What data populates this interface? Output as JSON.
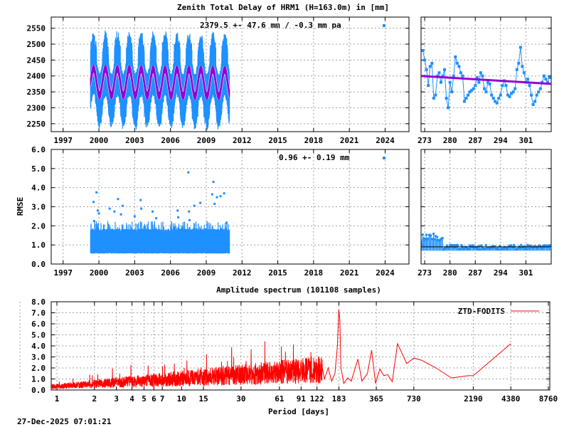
{
  "title": "Zenith Total Delay of HRM1 (H=163.0m) in [mm]",
  "timestamp": "27-Dec-2025 07:01:21",
  "colors": {
    "data": "#1e90ff",
    "model": "#9400d3",
    "spectrum": "#ff0000",
    "grid": "#a0a0a0",
    "axis": "#000000"
  },
  "chart_data": [
    {
      "id": "ztd-long",
      "type": "scatter",
      "ylabel": "",
      "annotation": "2379.5 +-  47.6 mm / -0.3 mm pa",
      "xlim": [
        1996,
        2026
      ],
      "ylim": [
        2225,
        2585
      ],
      "xticks": [
        "1997",
        "2000",
        "2003",
        "2006",
        "2009",
        "2012",
        "2015",
        "2018",
        "2021",
        "2024"
      ],
      "yticks": [
        "2250",
        "2300",
        "2350",
        "2400",
        "2450",
        "2500",
        "2550"
      ],
      "grid": true,
      "data_range": [
        1999.3,
        2010.95
      ],
      "mean": 2379.5,
      "std": 47.6,
      "trend_mm_per_year": -0.3,
      "model_annual_amplitude": 42,
      "series_names": []
    },
    {
      "id": "ztd-recent",
      "type": "scatter",
      "xlim": [
        272,
        308
      ],
      "ylim": [
        2225,
        2585
      ],
      "xticks": [
        "273",
        "280",
        "287",
        "294",
        "301"
      ],
      "grid": true,
      "days": [
        272.5,
        273,
        273.5,
        274,
        274.5,
        275,
        275.5,
        276,
        276.5,
        277,
        277.5,
        278,
        278.5,
        279,
        279.5,
        280,
        280.5,
        281,
        281.5,
        282,
        282.5,
        283,
        283.5,
        284,
        284.5,
        285,
        285.5,
        286,
        286.5,
        287,
        287.5,
        288,
        288.5,
        289,
        289.5,
        290,
        290.5,
        291,
        291.5,
        292,
        292.5,
        293,
        293.5,
        294,
        294.5,
        295,
        295.5,
        296,
        296.5,
        297,
        297.5,
        298,
        298.5,
        299,
        299.5,
        300,
        300.5,
        301,
        301.5,
        302,
        302.5,
        303,
        303.5,
        304,
        304.5,
        305,
        305.5,
        306,
        306.5,
        307,
        307.5
      ],
      "values": [
        2480,
        2450,
        2420,
        2370,
        2430,
        2440,
        2330,
        2340,
        2400,
        2410,
        2380,
        2400,
        2420,
        2330,
        2300,
        2380,
        2350,
        2400,
        2460,
        2440,
        2430,
        2410,
        2400,
        2320,
        2330,
        2340,
        2350,
        2355,
        2360,
        2370,
        2395,
        2380,
        2410,
        2400,
        2360,
        2350,
        2380,
        2375,
        2340,
        2330,
        2320,
        2315,
        2330,
        2340,
        2370,
        2385,
        2370,
        2340,
        2335,
        2345,
        2350,
        2360,
        2420,
        2440,
        2490,
        2430,
        2410,
        2380,
        2390,
        2370,
        2340,
        2310,
        2320,
        2340,
        2350,
        2360,
        2380,
        2400,
        2390,
        2380,
        2395
      ],
      "trend": [
        2400,
        2375
      ]
    },
    {
      "id": "rmse-long",
      "type": "scatter",
      "ylabel": "RMSE",
      "annotation": "0.96 +-  0.19 mm",
      "xlim": [
        1996,
        2026
      ],
      "ylim": [
        0,
        6
      ],
      "xticks": [
        "1997",
        "2000",
        "2003",
        "2006",
        "2009",
        "2012",
        "2015",
        "2018",
        "2021",
        "2024"
      ],
      "yticks": [
        "0.0",
        "1.0",
        "2.0",
        "3.0",
        "4.0",
        "5.0",
        "6.0"
      ],
      "grid": true,
      "mean": 0.96,
      "std": 0.19,
      "outliers": [
        [
          1999.55,
          3.25
        ],
        [
          1999.6,
          2.25
        ],
        [
          1999.8,
          3.75
        ],
        [
          1999.9,
          2.8
        ],
        [
          2000.0,
          2.65
        ],
        [
          2000.9,
          2.9
        ],
        [
          2001.3,
          2.75
        ],
        [
          2001.6,
          3.4
        ],
        [
          2001.85,
          2.6
        ],
        [
          2002.0,
          3.05
        ],
        [
          2003.0,
          2.5
        ],
        [
          2003.5,
          3.35
        ],
        [
          2003.55,
          2.9
        ],
        [
          2004.5,
          2.75
        ],
        [
          2004.8,
          2.4
        ],
        [
          2006.6,
          2.8
        ],
        [
          2006.65,
          2.45
        ],
        [
          2007.5,
          4.8
        ],
        [
          2007.55,
          2.75
        ],
        [
          2007.6,
          2.3
        ],
        [
          2008.0,
          3.05
        ],
        [
          2008.5,
          3.2
        ],
        [
          2009.5,
          3.65
        ],
        [
          2009.6,
          4.3
        ],
        [
          2009.7,
          3.15
        ],
        [
          2009.9,
          3.5
        ],
        [
          2010.2,
          3.55
        ],
        [
          2010.5,
          3.7
        ],
        [
          2010.7,
          2.15
        ]
      ]
    },
    {
      "id": "rmse-recent",
      "type": "scatter",
      "xlim": [
        272,
        308
      ],
      "ylim": [
        0,
        6
      ],
      "xticks": [
        "273",
        "280",
        "287",
        "294",
        "301"
      ],
      "grid": true
    },
    {
      "id": "spectrum",
      "type": "line",
      "title": "Amplitude spectrum (101108 samples)",
      "xlabel": "Period [days]",
      "xscale": "log",
      "xlim": [
        0.9,
        9000
      ],
      "ylim": [
        0,
        8
      ],
      "xticks": [
        "1",
        "2",
        "3",
        "4",
        "5",
        "6",
        "7",
        "10",
        "15",
        "30",
        "61",
        "91",
        "122",
        "183",
        "365",
        "730",
        "2190",
        "4380",
        "8760"
      ],
      "yticks": [
        "0.0",
        "1.0",
        "2.0",
        "3.0",
        "4.0",
        "5.0",
        "6.0",
        "7.0",
        "8.0"
      ],
      "grid": true,
      "legend": {
        "label": "ZTD-FODITS",
        "placement": "top-right"
      },
      "long_period_points": [
        [
          140,
          1.0
        ],
        [
          150,
          2.0
        ],
        [
          160,
          0.8
        ],
        [
          170,
          1.5
        ],
        [
          178,
          4.0
        ],
        [
          182.6,
          7.3
        ],
        [
          186,
          6.4
        ],
        [
          190,
          2.0
        ],
        [
          200,
          0.6
        ],
        [
          215,
          1.1
        ],
        [
          230,
          0.8
        ],
        [
          260,
          2.8
        ],
        [
          280,
          0.8
        ],
        [
          310,
          1.5
        ],
        [
          335,
          3.6
        ],
        [
          360,
          0.6
        ],
        [
          390,
          1.9
        ],
        [
          420,
          1.3
        ],
        [
          450,
          1.4
        ],
        [
          490,
          0.75
        ],
        [
          540,
          4.2
        ],
        [
          640,
          2.4
        ],
        [
          730,
          2.9
        ],
        [
          840,
          2.7
        ],
        [
          1100,
          2.0
        ],
        [
          1460,
          1.1
        ],
        [
          2000,
          1.3
        ],
        [
          2190,
          1.3
        ],
        [
          4380,
          4.2
        ]
      ]
    }
  ]
}
